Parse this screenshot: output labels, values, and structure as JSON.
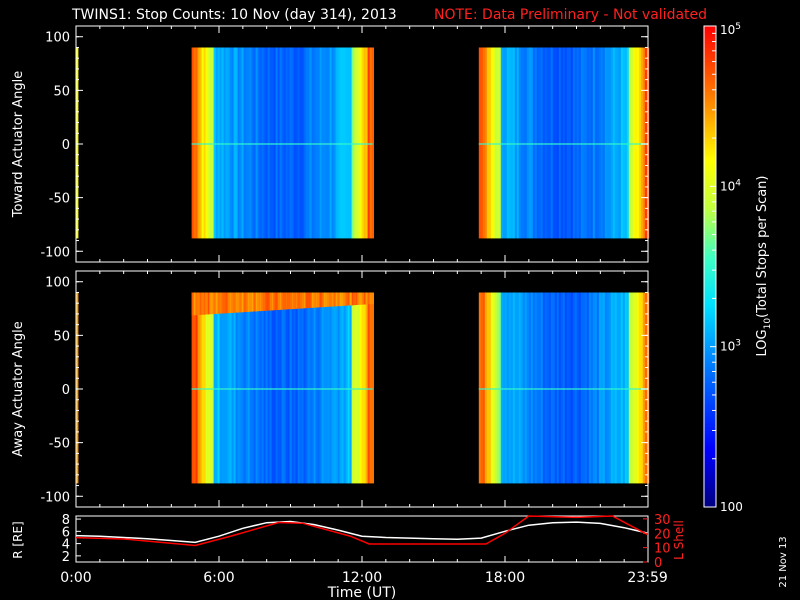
{
  "header": {
    "title": "TWINS1: Stop Counts: 10 Nov (day 314), 2013",
    "note": "NOTE: Data Preliminary - Not validated"
  },
  "stamp": "21 Nov 13",
  "colors": {
    "background": "#000000",
    "axis": "#ffffff",
    "note": "#ff0000",
    "lshell": "#ff0000",
    "radius": "#ffffff"
  },
  "chart_data": [
    {
      "type": "heatmap",
      "panel": "toward",
      "ylabel": "Toward Actuator Angle",
      "ylim": [
        -110,
        110
      ],
      "yticks": [
        100,
        50,
        0,
        -50,
        -100
      ],
      "xlim": [
        0,
        24
      ],
      "data_segments_hours": [
        [
          0.0,
          0.05
        ],
        [
          4.85,
          12.45
        ],
        [
          16.9,
          24.0
        ]
      ],
      "angle_range": [
        -88,
        90
      ],
      "pattern": "high counts (orange/red) at segment edges, low counts (blue/cyan) in segment interiors"
    },
    {
      "type": "heatmap",
      "panel": "away",
      "ylabel": "Away Actuator Angle",
      "ylim": [
        -110,
        110
      ],
      "yticks": [
        100,
        50,
        0,
        -50,
        -100
      ],
      "xlim": [
        0,
        24
      ],
      "data_segments_hours": [
        [
          0.0,
          0.05
        ],
        [
          4.85,
          12.45
        ],
        [
          16.9,
          24.0
        ]
      ],
      "angle_range": [
        -88,
        90
      ],
      "pattern": "high counts (orange/red) at segment edges and upper angles, low counts (blue/cyan) in interiors"
    },
    {
      "type": "line",
      "panel": "orbit",
      "ylabel_left": "R [RE]",
      "ylabel_right": "L Shell",
      "xlabel": "Time (UT)",
      "xlim": [
        0,
        24
      ],
      "xticks": [
        "0:00",
        "6:00",
        "12:00",
        "18:00",
        "23:59"
      ],
      "y_left_ticks": [
        8,
        6,
        4,
        2
      ],
      "y_right_ticks": [
        30,
        20,
        10,
        0
      ],
      "ylim_left": [
        1,
        8.5
      ],
      "ylim_right": [
        0,
        32
      ],
      "series": [
        {
          "name": "R",
          "axis": "left",
          "x": [
            0,
            1,
            2,
            3,
            4,
            5,
            6,
            7,
            8,
            9,
            10,
            11,
            12,
            13,
            14,
            15,
            16,
            17,
            18,
            19,
            20,
            21,
            22,
            23,
            24
          ],
          "y": [
            5.3,
            5.2,
            5.0,
            4.8,
            4.5,
            4.2,
            5.2,
            6.5,
            7.4,
            7.6,
            7.1,
            6.2,
            5.2,
            5.0,
            4.9,
            4.8,
            4.7,
            4.9,
            6.0,
            7.0,
            7.4,
            7.5,
            7.3,
            6.6,
            5.7
          ]
        },
        {
          "name": "L Shell",
          "axis": "right",
          "x": [
            0,
            2,
            5.0,
            6.5,
            8.5,
            9.5,
            11.5,
            12.3,
            17.2,
            18.0,
            19.0,
            21.0,
            22.5,
            23.99
          ],
          "y": [
            17.0,
            16.0,
            11.5,
            18.0,
            27.5,
            27.0,
            18.0,
            12.5,
            12.5,
            20.0,
            32.0,
            31.0,
            32.0,
            19.0
          ]
        }
      ]
    },
    {
      "type": "heatmap",
      "panel": "colorbar",
      "label": "LOG10(Total Stops per Scan)",
      "label_main": "LOG",
      "label_sub": "10",
      "label_rest": "(Total Stops per Scan)",
      "range": [
        100,
        100000
      ],
      "ticks": [
        {
          "value": 100000,
          "base": "10",
          "exp": "5"
        },
        {
          "value": 10000,
          "base": "10",
          "exp": "4"
        },
        {
          "value": 1000,
          "base": "10",
          "exp": "3"
        },
        {
          "value": 100,
          "base": "100",
          "exp": ""
        }
      ]
    }
  ]
}
